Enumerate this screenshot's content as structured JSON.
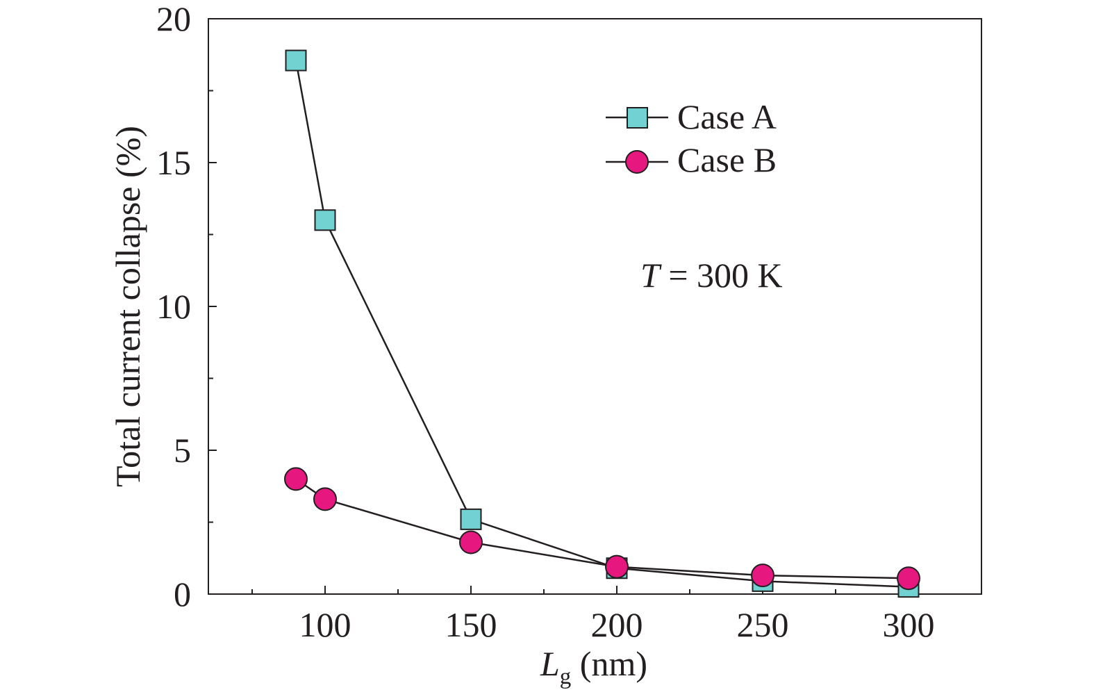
{
  "chart_data": {
    "type": "line",
    "xlabel": {
      "main": "L",
      "sub": "g",
      "unit": " (nm)"
    },
    "ylabel": "Total current collapse (%)",
    "xlim": [
      60,
      325
    ],
    "ylim": [
      0,
      20
    ],
    "x_ticks": [
      100,
      150,
      200,
      250,
      300
    ],
    "x_minor_ticks": [
      75,
      125,
      175,
      225,
      275
    ],
    "y_ticks": [
      0,
      5,
      10,
      15,
      20
    ],
    "y_minor_ticks": [
      2.5,
      7.5,
      12.5,
      17.5
    ],
    "grid": false,
    "legend_position": "top-right",
    "annotation": {
      "italic": "T",
      "rest": " = 300 K"
    },
    "series": [
      {
        "name": "Case A",
        "marker": "square",
        "color": "#72d1d1",
        "x": [
          90,
          100,
          150,
          200,
          250,
          300
        ],
        "y": [
          18.55,
          13.0,
          2.6,
          0.9,
          0.45,
          0.25
        ]
      },
      {
        "name": "Case B",
        "marker": "circle",
        "color": "#e6177f",
        "x": [
          90,
          100,
          150,
          200,
          250,
          300
        ],
        "y": [
          4.0,
          3.3,
          1.8,
          0.95,
          0.65,
          0.55
        ]
      }
    ]
  }
}
